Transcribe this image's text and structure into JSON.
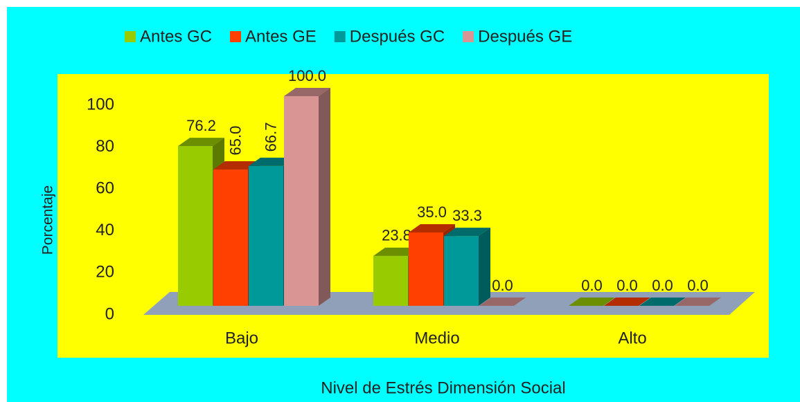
{
  "chart_data": {
    "type": "bar3d",
    "x_label": "Nivel de Estrés Dimensión Social",
    "y_label": "Porcentaje",
    "categories": [
      "Bajo",
      "Medio",
      "Alto"
    ],
    "series": [
      {
        "name": "Antes GC",
        "color": "#99CC00",
        "values": [
          76.2,
          23.8,
          0
        ],
        "value_labels": [
          "76.2",
          "23.8",
          "0.0"
        ]
      },
      {
        "name": "Antes GE",
        "color": "#FF4000",
        "values": [
          65,
          35,
          0
        ],
        "value_labels": [
          "65.0",
          "35.0",
          "0.0"
        ]
      },
      {
        "name": "Después GC",
        "color": "#009999",
        "values": [
          66.7,
          33.3,
          0
        ],
        "value_labels": [
          "66.7",
          "33.3",
          "0.0"
        ]
      },
      {
        "name": "Después GE",
        "color": "#D99594",
        "values": [
          100,
          0,
          0
        ],
        "value_labels": [
          "100.0",
          "0.0",
          "0.0"
        ]
      }
    ],
    "ylim": [
      0,
      100
    ],
    "yticks": [
      0,
      20,
      40,
      60,
      80,
      100
    ],
    "legend": "top"
  }
}
